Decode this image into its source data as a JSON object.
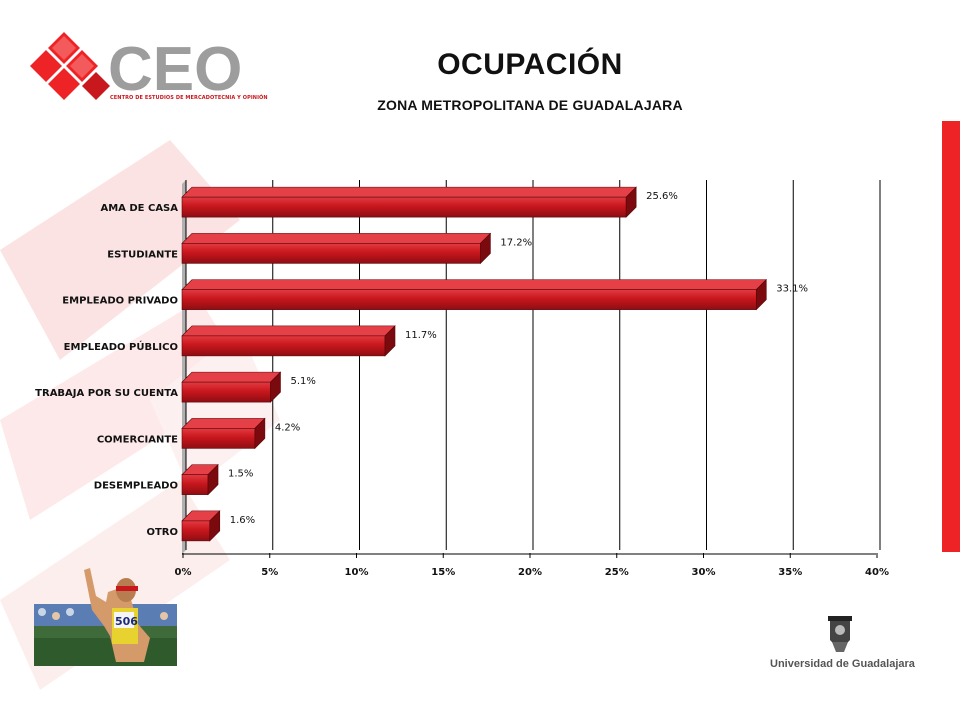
{
  "header": {
    "title": "OCUPACIÓN",
    "subtitle": "ZONA METROPOLITANA DE GUADALAJARA"
  },
  "logo": {
    "text": "CEO",
    "tagline": "CENTRO DE ESTUDIOS DE MERCADOTECNIA Y OPINIÓN"
  },
  "footer": {
    "university": "Universidad de Guadalajara"
  },
  "photo": {
    "bib_number": "506"
  },
  "colors": {
    "bar": "#c8171d",
    "bar_dark": "#7a0a0e",
    "bar_top": "#e54048",
    "accent": "#ee2326",
    "logo_grey": "#9d9d9d"
  },
  "chart_data": {
    "type": "bar",
    "orientation": "horizontal",
    "categories": [
      "AMA DE CASA",
      "ESTUDIANTE",
      "EMPLEADO PRIVADO",
      "EMPLEADO PÚBLICO",
      "TRABAJA POR SU CUENTA",
      "COMERCIANTE",
      "DESEMPLEADO",
      "OTRO"
    ],
    "values": [
      25.6,
      17.2,
      33.1,
      11.7,
      5.1,
      4.2,
      1.5,
      1.6
    ],
    "value_labels": [
      "25.6%",
      "17.2%",
      "33.1%",
      "11.7%",
      "5.1%",
      "4.2%",
      "1.5%",
      "1.6%"
    ],
    "xlim": [
      0,
      40
    ],
    "ticks": [
      0,
      5,
      10,
      15,
      20,
      25,
      30,
      35,
      40
    ],
    "tick_labels": [
      "0%",
      "5%",
      "10%",
      "15%",
      "20%",
      "25%",
      "30%",
      "35%",
      "40%"
    ],
    "grid": true
  }
}
